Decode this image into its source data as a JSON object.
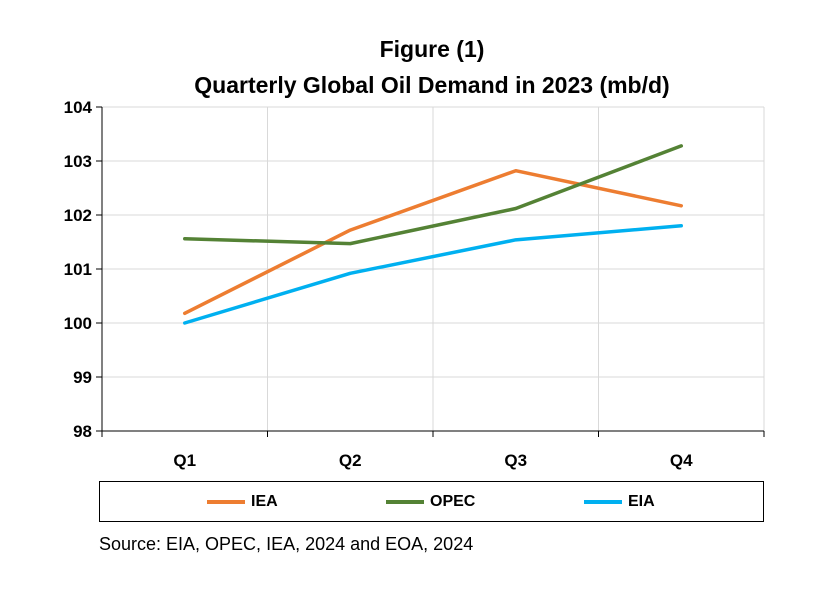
{
  "chart_data": {
    "type": "line",
    "title": "Figure (1)",
    "subtitle": "Quarterly Global Oil Demand in 2023 (mb/d)",
    "categories": [
      "Q1",
      "Q2",
      "Q3",
      "Q4"
    ],
    "ylim": [
      98,
      104
    ],
    "yticks": [
      98,
      99,
      100,
      101,
      102,
      103,
      104
    ],
    "grid": true,
    "legend_position": "bottom",
    "series": [
      {
        "name": "IEA",
        "color": "#ED7D31",
        "values": [
          100.18,
          101.72,
          102.82,
          102.17
        ]
      },
      {
        "name": "OPEC",
        "color": "#548235",
        "values": [
          101.56,
          101.47,
          102.12,
          103.28
        ]
      },
      {
        "name": "EIA",
        "color": "#00B0F0",
        "values": [
          100.0,
          100.92,
          101.54,
          101.8
        ]
      }
    ]
  },
  "source": "Source: EIA, OPEC, IEA, 2024 and EOA, 2024"
}
